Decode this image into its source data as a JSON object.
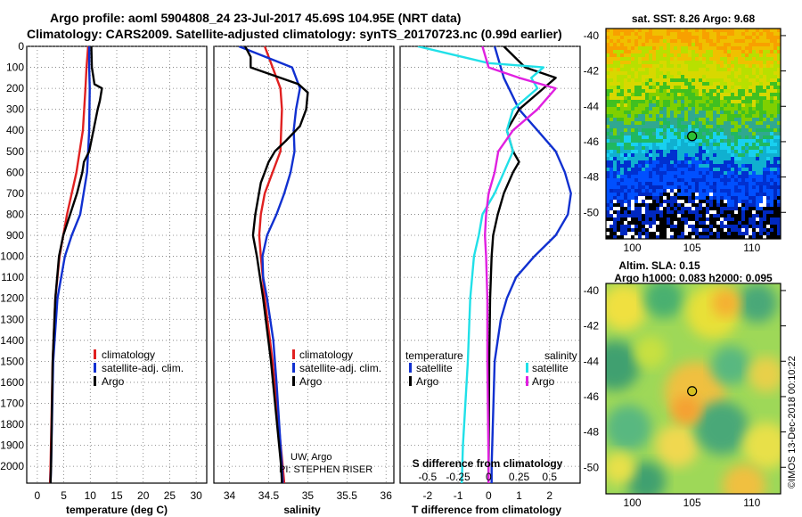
{
  "header": {
    "title_line1": "Argo profile: aoml 5904808_24 23-Jul-2017 45.69S 104.95E (NRT data)",
    "title_line2": "Climatology: CARS2009. Satellite-adjusted climatology: synTS_20170723.nc (0.99d earlier)"
  },
  "colors": {
    "climatology": "#e02020",
    "satellite_adj": "#1030d0",
    "argo": "#000000",
    "cyan": "#20e0e8",
    "magenta": "#e020e0"
  },
  "chart_data": [
    {
      "type": "line",
      "name": "temperature",
      "xlabel": "temperature (deg C)",
      "ylabel": "",
      "xlim": [
        -2,
        32
      ],
      "ylim": [
        2080,
        0
      ],
      "x_ticks": [
        "0",
        "5",
        "10",
        "15",
        "20",
        "25",
        "30"
      ],
      "y_ticks": [
        "0",
        "100",
        "200",
        "300",
        "400",
        "500",
        "600",
        "700",
        "800",
        "900",
        "1000",
        "1100",
        "1200",
        "1300",
        "1400",
        "1500",
        "1600",
        "1700",
        "1800",
        "1900",
        "2000"
      ],
      "legend": [
        "climatology",
        "satellite-adj. clim.",
        "Argo"
      ],
      "series": [
        {
          "name": "climatology",
          "color": "#e02020",
          "depth": [
            0,
            100,
            200,
            400,
            600,
            800,
            1000,
            1200,
            1500,
            2000,
            2080
          ],
          "values": [
            9.6,
            9.3,
            9.1,
            8.6,
            7.4,
            5.6,
            4.2,
            3.4,
            2.9,
            2.5,
            2.4
          ]
        },
        {
          "name": "satellite-adj. clim.",
          "color": "#1030d0",
          "depth": [
            0,
            100,
            200,
            400,
            600,
            800,
            900,
            1000,
            1200,
            1500,
            2000,
            2080
          ],
          "values": [
            9.8,
            9.8,
            9.9,
            9.8,
            9.4,
            8.1,
            6.5,
            5.2,
            3.8,
            3.0,
            2.6,
            2.5
          ]
        },
        {
          "name": "Argo",
          "color": "#000000",
          "depth": [
            0,
            100,
            180,
            200,
            260,
            300,
            400,
            500,
            550,
            600,
            700,
            800,
            900,
            1000,
            1200,
            1500,
            2000,
            2080
          ],
          "values": [
            10.2,
            10.3,
            10.8,
            12.2,
            11.8,
            11.4,
            10.6,
            9.8,
            8.8,
            8.5,
            7.5,
            6.2,
            4.9,
            4.1,
            3.4,
            2.9,
            2.6,
            2.5
          ]
        }
      ]
    },
    {
      "type": "line",
      "name": "salinity",
      "xlabel": "salinity",
      "xlim": [
        33.8,
        36.1
      ],
      "ylim": [
        2080,
        0
      ],
      "x_ticks": [
        "34",
        "34.5",
        "35",
        "35.5",
        "36"
      ],
      "legend": [
        "climatology",
        "satellite-adj. clim.",
        "Argo"
      ],
      "annotation_line1": "UW, Argo",
      "annotation_line2": "PI: STEPHEN RISER",
      "series": [
        {
          "name": "climatology",
          "color": "#e02020",
          "depth": [
            0,
            100,
            200,
            300,
            400,
            500,
            600,
            700,
            800,
            900,
            1000,
            1200,
            1500,
            2000,
            2080
          ],
          "values": [
            34.45,
            34.55,
            34.65,
            34.67,
            34.66,
            34.65,
            34.55,
            34.45,
            34.4,
            34.38,
            34.4,
            34.45,
            34.55,
            34.68,
            34.7
          ]
        },
        {
          "name": "satellite-adj. clim.",
          "color": "#1030d0",
          "depth": [
            0,
            100,
            200,
            300,
            400,
            500,
            600,
            700,
            800,
            900,
            1000,
            1100,
            1200,
            1400,
            1600,
            2000,
            2080
          ],
          "values": [
            34.12,
            34.8,
            34.9,
            34.85,
            34.82,
            34.83,
            34.78,
            34.7,
            34.6,
            34.48,
            34.42,
            34.43,
            34.48,
            34.56,
            34.6,
            34.67,
            34.68
          ]
        },
        {
          "name": "Argo",
          "color": "#000000",
          "depth": [
            0,
            50,
            100,
            180,
            220,
            300,
            380,
            450,
            500,
            550,
            650,
            800,
            900,
            1000,
            1200,
            1500,
            2000,
            2080
          ],
          "values": [
            34.2,
            34.27,
            34.27,
            34.88,
            35.0,
            34.98,
            34.9,
            34.72,
            34.58,
            34.5,
            34.4,
            34.33,
            34.3,
            34.35,
            34.43,
            34.53,
            34.66,
            34.67
          ]
        }
      ]
    },
    {
      "type": "line",
      "name": "differences",
      "xlabel": "T difference from climatology",
      "top_label": "S difference from climatology",
      "xlim": [
        -2.9,
        3.0
      ],
      "ylim": [
        2080,
        0
      ],
      "x_ticks": [
        "-2",
        "-1",
        "0",
        "1",
        "2"
      ],
      "s_ticks": [
        "-0.5",
        "-0.25",
        "0",
        "0.25",
        "0.5"
      ],
      "legend_temperature_title": "temperature",
      "legend_salinity_title": "salinity",
      "legend_left": [
        "satellite",
        "Argo"
      ],
      "legend_right": [
        "satellite",
        "Argo"
      ],
      "series": [
        {
          "name": "T satellite",
          "color": "#1030d0",
          "depth": [
            0,
            150,
            300,
            400,
            500,
            600,
            700,
            800,
            900,
            1000,
            1100,
            1200,
            1300,
            1500,
            2000,
            2080
          ],
          "values": [
            0.2,
            0.5,
            1.0,
            1.6,
            2.2,
            2.5,
            2.7,
            2.6,
            2.2,
            1.5,
            0.9,
            0.6,
            0.4,
            0.2,
            0.1,
            0.1
          ]
        },
        {
          "name": "T Argo",
          "color": "#000000",
          "depth": [
            0,
            100,
            150,
            200,
            300,
            400,
            500,
            550,
            600,
            700,
            800,
            900,
            1000,
            1200,
            1500,
            2000,
            2080
          ],
          "values": [
            0.5,
            1.2,
            2.2,
            1.8,
            1.0,
            0.6,
            0.8,
            1.0,
            0.8,
            0.5,
            0.3,
            0.15,
            0.1,
            0.05,
            0.02,
            0.0,
            0.0
          ]
        },
        {
          "name": "S satellite",
          "color": "#20e0e8",
          "depth": [
            0,
            80,
            100,
            150,
            200,
            300,
            400,
            500,
            700,
            800,
            900,
            1000,
            1200,
            1500,
            1800,
            1900,
            2080
          ],
          "values": [
            -0.58,
            0.0,
            0.45,
            0.35,
            0.4,
            0.2,
            0.15,
            0.2,
            0.05,
            -0.05,
            -0.08,
            -0.12,
            -0.15,
            -0.17,
            -0.2,
            -0.21,
            -0.22
          ]
        },
        {
          "name": "S Argo",
          "color": "#e020e0",
          "depth": [
            0,
            100,
            150,
            200,
            300,
            400,
            500,
            600,
            700,
            800,
            900,
            1000,
            1200,
            1500,
            2000,
            2080
          ],
          "values": [
            -0.05,
            0.0,
            0.25,
            0.55,
            0.4,
            0.2,
            0.08,
            0.05,
            0.0,
            -0.02,
            -0.03,
            -0.02,
            -0.01,
            -0.01,
            0.0,
            0.0
          ]
        }
      ]
    },
    {
      "type": "heatmap",
      "name": "sst-map",
      "title": "sat. SST: 8.26 Argo: 9.68",
      "x_ticks": [
        "100",
        "105",
        "110"
      ],
      "y_ticks": [
        "-40",
        "-42",
        "-44",
        "-46",
        "-48",
        "-50"
      ],
      "marker_lon": 105,
      "marker_lat": -45.69
    },
    {
      "type": "heatmap",
      "name": "sla-map",
      "title_line1": "Altim. SLA: 0.15",
      "title_line2": "Argo h1000: 0.083 h2000: 0.095",
      "x_ticks": [
        "100",
        "105",
        "110"
      ],
      "y_ticks": [
        "-40",
        "-42",
        "-44",
        "-46",
        "-48",
        "-50"
      ],
      "marker_lon": 105,
      "marker_lat": -45.69
    }
  ],
  "footer": {
    "stamp": "©IMOS 13-Dec-2018 00:10:22"
  }
}
